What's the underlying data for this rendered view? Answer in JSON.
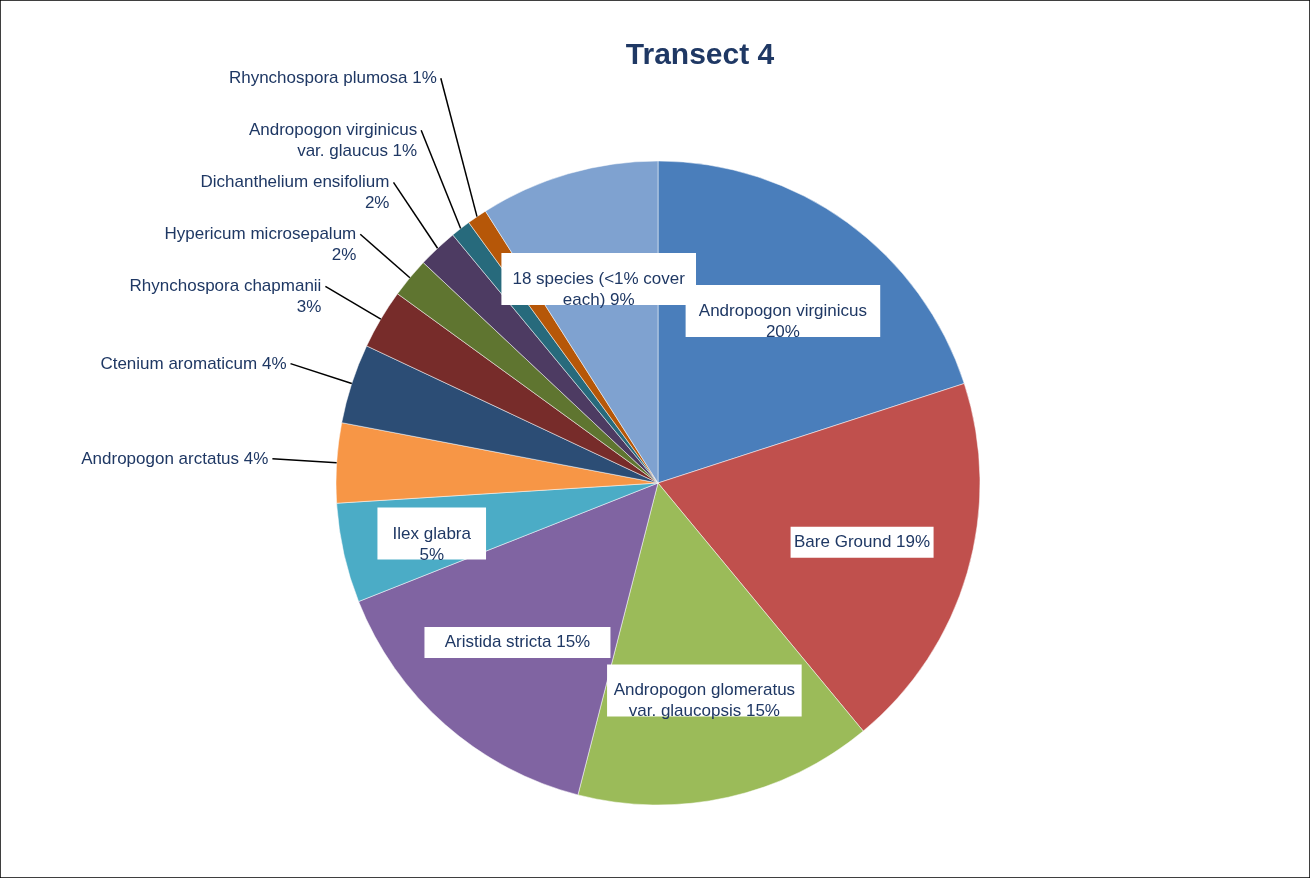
{
  "chart_data": {
    "type": "pie",
    "title": "Transect 4",
    "categories": [
      "Andropogon virginicus",
      "Bare Ground",
      "Andropogon glomeratus var. glaucopsis",
      "Aristida stricta",
      "Ilex glabra",
      "Andropogon arctatus",
      "Ctenium aromaticum",
      "Rhynchospora chapmanii",
      "Hypericum microsepalum",
      "Dichanthelium ensifolium",
      "Andropogon virginicus var. glaucus",
      "Rhynchospora plumosa",
      "18 species (<1% cover each)"
    ],
    "values": [
      20,
      19,
      15,
      15,
      5,
      4,
      4,
      3,
      2,
      2,
      1,
      1,
      9
    ],
    "value_labels": [
      "20%",
      "19%",
      "15%",
      "15%",
      "5%",
      "4%",
      "4%",
      "3%",
      "2%",
      "2%",
      "1%",
      "1%",
      "9%"
    ],
    "colors": [
      "#4a7ebb",
      "#c0504d",
      "#9bbb59",
      "#8064a2",
      "#4bacc6",
      "#f79646",
      "#2c4d75",
      "#772c2a",
      "#5f7530",
      "#4d3b62",
      "#276a7c",
      "#b65708",
      "#7fa2d0"
    ]
  }
}
